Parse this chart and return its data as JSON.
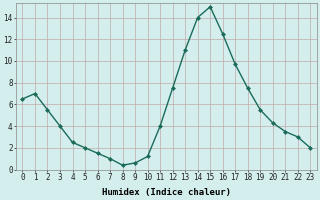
{
  "x": [
    0,
    1,
    2,
    3,
    4,
    5,
    6,
    7,
    8,
    9,
    10,
    11,
    12,
    13,
    14,
    15,
    16,
    17,
    18,
    19,
    20,
    21,
    22,
    23
  ],
  "y": [
    6.5,
    7.0,
    5.5,
    4.0,
    2.5,
    2.0,
    1.5,
    1.0,
    0.4,
    0.6,
    1.2,
    4.0,
    7.5,
    11.0,
    14.0,
    15.0,
    12.5,
    9.7,
    7.5,
    5.5,
    4.3,
    3.5,
    3.0,
    2.0
  ],
  "line_color": "#1a6b5a",
  "marker": "D",
  "marker_size": 2.0,
  "bg_color": "#d4eeee",
  "grid_color": "#c0aaaa",
  "xlabel": "Humidex (Indice chaleur)",
  "ylim": [
    0,
    15
  ],
  "xlim_min": -0.5,
  "xlim_max": 23.5,
  "yticks": [
    0,
    2,
    4,
    6,
    8,
    10,
    12,
    14
  ],
  "xticks": [
    0,
    1,
    2,
    3,
    4,
    5,
    6,
    7,
    8,
    9,
    10,
    11,
    12,
    13,
    14,
    15,
    16,
    17,
    18,
    19,
    20,
    21,
    22,
    23
  ],
  "xlabel_fontsize": 6.5,
  "tick_fontsize": 5.5,
  "linewidth": 1.0
}
